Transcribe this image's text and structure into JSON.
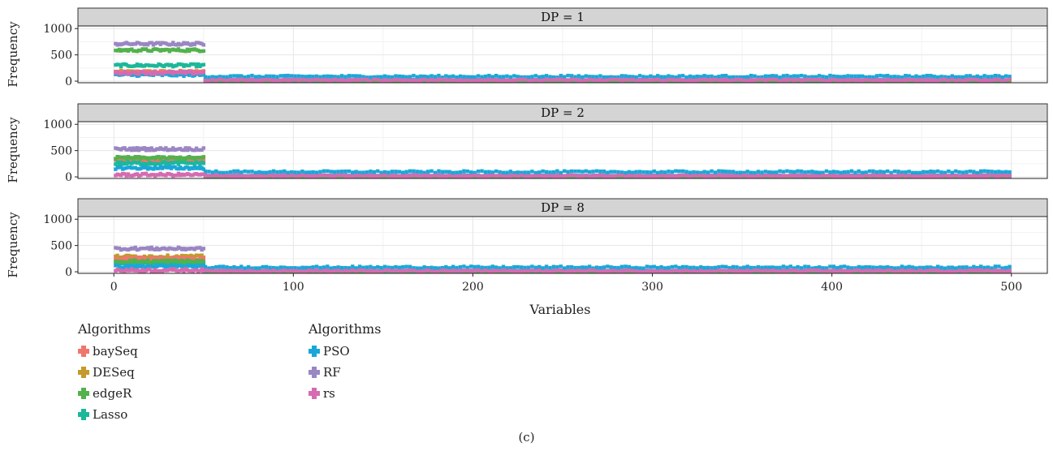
{
  "chart_data": {
    "type": "scatter",
    "xlabel": "Variables",
    "ylabel": "Frequency",
    "xlim": [
      -20,
      520
    ],
    "ylim": [
      -30,
      1050
    ],
    "xticks": [
      0,
      100,
      200,
      300,
      400,
      500
    ],
    "yticks": [
      0,
      500,
      1000
    ],
    "grid": true,
    "x_informative": [
      1,
      50
    ],
    "x_noise": [
      51,
      500
    ],
    "panels": [
      {
        "strip": "DP = 1",
        "informative_levels": {
          "baySeq": 170,
          "DESeq": 175,
          "edgeR": 590,
          "Lasso": 300,
          "PSO": 120,
          "RF": 710,
          "rs": 160
        },
        "noise_levels": {
          "baySeq": 5,
          "DESeq": 5,
          "edgeR": 5,
          "Lasso": 5,
          "PSO": 90,
          "RF": 40,
          "rs": 20
        }
      },
      {
        "strip": "DP = 2",
        "informative_levels": {
          "baySeq": 300,
          "DESeq": 340,
          "edgeR": 360,
          "Lasso": 260,
          "PSO": 170,
          "RF": 530,
          "rs": 40
        },
        "noise_levels": {
          "baySeq": 5,
          "DESeq": 5,
          "edgeR": 5,
          "Lasso": 5,
          "PSO": 95,
          "RF": 35,
          "rs": 15
        }
      },
      {
        "strip": "DP = 8",
        "informative_levels": {
          "baySeq": 250,
          "DESeq": 290,
          "edgeR": 200,
          "Lasso": 160,
          "PSO": 100,
          "RF": 440,
          "rs": 30
        },
        "noise_levels": {
          "baySeq": 5,
          "DESeq": 5,
          "edgeR": 5,
          "Lasso": 5,
          "PSO": 85,
          "RF": 35,
          "rs": 15
        }
      }
    ],
    "series": [
      {
        "name": "baySeq",
        "color": "#F0766D"
      },
      {
        "name": "DESeq",
        "color": "#C39A2B"
      },
      {
        "name": "edgeR",
        "color": "#53B14E"
      },
      {
        "name": "Lasso",
        "color": "#1BB89A"
      },
      {
        "name": "PSO",
        "color": "#1AA7D8"
      },
      {
        "name": "RF",
        "color": "#9A86C3"
      },
      {
        "name": "rs",
        "color": "#D56BB0"
      }
    ]
  },
  "legend": {
    "left": {
      "title": "Algorithms",
      "items": [
        "baySeq",
        "DESeq",
        "edgeR",
        "Lasso"
      ]
    },
    "right": {
      "title": "Algorithms",
      "items": [
        "PSO",
        "RF",
        "rs"
      ]
    }
  },
  "caption": "(c)"
}
